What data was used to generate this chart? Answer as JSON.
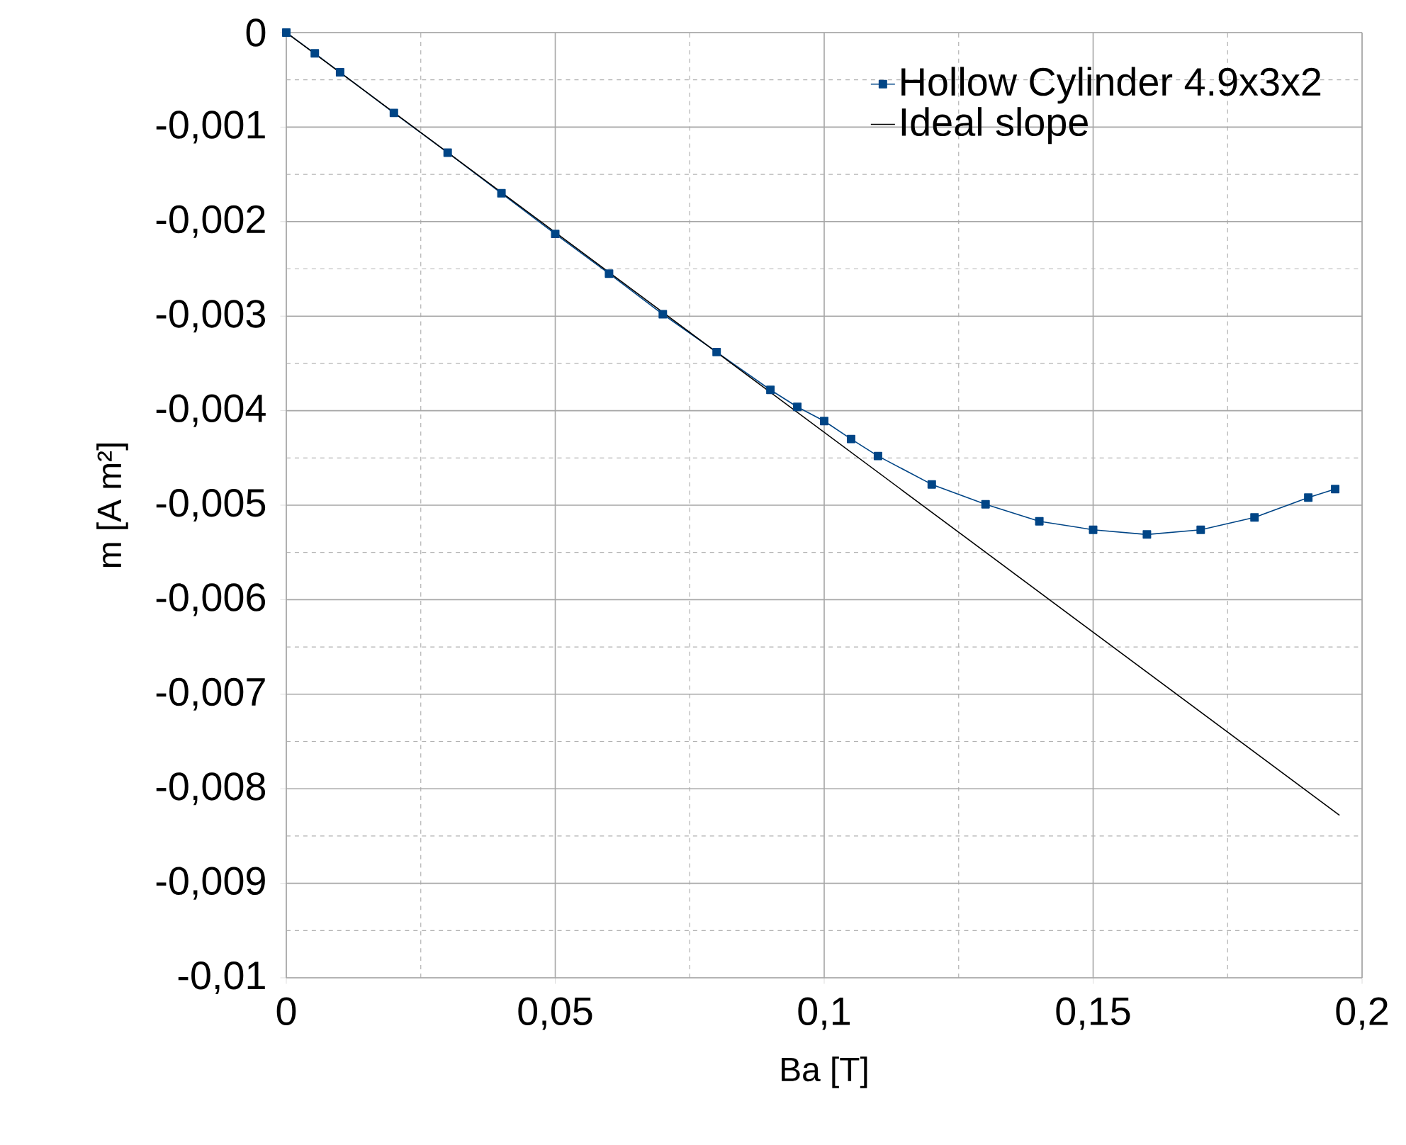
{
  "chart_data": {
    "type": "line",
    "xlabel": "Ba [T]",
    "ylabel": "m  [A m²]",
    "xlim": [
      0,
      0.2
    ],
    "ylim": [
      -0.01,
      0
    ],
    "xticks": [
      {
        "value": 0,
        "label": "0"
      },
      {
        "value": 0.025,
        "label": null
      },
      {
        "value": 0.05,
        "label": "0,05"
      },
      {
        "value": 0.075,
        "label": null
      },
      {
        "value": 0.1,
        "label": "0,1"
      },
      {
        "value": 0.125,
        "label": null
      },
      {
        "value": 0.15,
        "label": "0,15"
      },
      {
        "value": 0.175,
        "label": null
      },
      {
        "value": 0.2,
        "label": "0,2"
      }
    ],
    "yticks": [
      {
        "value": 0,
        "label": "0"
      },
      {
        "value": -0.0005,
        "label": null
      },
      {
        "value": -0.001,
        "label": "-0,001"
      },
      {
        "value": -0.0015,
        "label": null
      },
      {
        "value": -0.002,
        "label": "-0,002"
      },
      {
        "value": -0.0025,
        "label": null
      },
      {
        "value": -0.003,
        "label": "-0,003"
      },
      {
        "value": -0.0035,
        "label": null
      },
      {
        "value": -0.004,
        "label": "-0,004"
      },
      {
        "value": -0.0045,
        "label": null
      },
      {
        "value": -0.005,
        "label": "-0,005"
      },
      {
        "value": -0.0055,
        "label": null
      },
      {
        "value": -0.006,
        "label": "-0,006"
      },
      {
        "value": -0.0065,
        "label": null
      },
      {
        "value": -0.007,
        "label": "-0,007"
      },
      {
        "value": -0.0075,
        "label": null
      },
      {
        "value": -0.008,
        "label": "-0,008"
      },
      {
        "value": -0.0085,
        "label": null
      },
      {
        "value": -0.009,
        "label": "-0,009"
      },
      {
        "value": -0.0095,
        "label": null
      },
      {
        "value": -0.01,
        "label": "-0,01"
      }
    ],
    "grid": true,
    "legend": "top right",
    "line_style": "solid",
    "series": [
      {
        "name": "Hollow Cylinder 4.9x3x2",
        "color": "#004586",
        "marker": "square",
        "x": [
          0,
          0.0053,
          0.01,
          0.02,
          0.03,
          0.04,
          0.05,
          0.06,
          0.07,
          0.08,
          0.09,
          0.095,
          0.1,
          0.105,
          0.11,
          0.12,
          0.13,
          0.14,
          0.15,
          0.16,
          0.17,
          0.18,
          0.19,
          0.195
        ],
        "values": [
          0,
          -0.00022,
          -0.00042,
          -0.00085,
          -0.00127,
          -0.0017,
          -0.00213,
          -0.00255,
          -0.00298,
          -0.00338,
          -0.00378,
          -0.00396,
          -0.00411,
          -0.0043,
          -0.00448,
          -0.00478,
          -0.00499,
          -0.00517,
          -0.00526,
          -0.00531,
          -0.00526,
          -0.00513,
          -0.00492,
          -0.00483
        ]
      },
      {
        "name": "Ideal slope",
        "color": "#000000",
        "marker": "none",
        "x": [
          0,
          0.1958
        ],
        "values": [
          0,
          -0.00828
        ]
      }
    ]
  }
}
